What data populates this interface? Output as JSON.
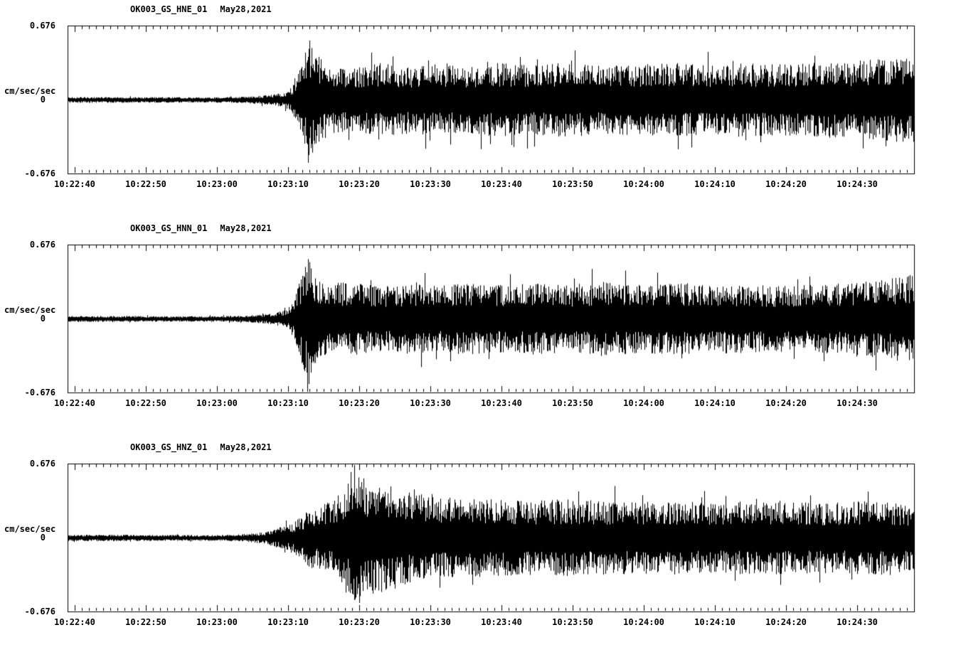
{
  "page": {
    "background": "#ffffff",
    "foreground": "#000000"
  },
  "chart_data": [
    {
      "type": "line",
      "title": "OK003_GS_HNE_01",
      "date": "May28,2021",
      "ylabel": "cm/sec/sec",
      "ylim": [
        -0.676,
        0.676
      ],
      "yticks": [
        "0.676",
        "0",
        "-0.676"
      ],
      "x_tick_labels": [
        "10:22:40",
        "10:22:50",
        "10:23:00",
        "10:23:10",
        "10:23:20",
        "10:23:30",
        "10:23:40",
        "10:23:50",
        "10:24:00",
        "10:24:10",
        "10:24:20",
        "10:24:30"
      ],
      "x_tick_interval_seconds": 10,
      "minor_tick_seconds": 1,
      "first_tick_offset_seconds": 1,
      "time_span_seconds": 119,
      "grid": false,
      "legend": "none",
      "line_color": "#000000",
      "seed": 101,
      "envelope": {
        "t": [
          0,
          20,
          25,
          28,
          30,
          31,
          32,
          33,
          34,
          35,
          37,
          40,
          44,
          48,
          52,
          56,
          60,
          65,
          70,
          75,
          80,
          85,
          90,
          95,
          100,
          105,
          110,
          114,
          119
        ],
        "amp": [
          0.035,
          0.032,
          0.04,
          0.06,
          0.09,
          0.12,
          0.25,
          0.55,
          0.8,
          0.6,
          0.45,
          0.42,
          0.5,
          0.45,
          0.48,
          0.44,
          0.5,
          0.46,
          0.5,
          0.46,
          0.48,
          0.5,
          0.46,
          0.5,
          0.47,
          0.5,
          0.52,
          0.55,
          0.58
        ]
      }
    },
    {
      "type": "line",
      "title": "OK003_GS_HNN_01",
      "date": "May28,2021",
      "ylabel": "cm/sec/sec",
      "ylim": [
        -0.676,
        0.676
      ],
      "yticks": [
        "0.676",
        "0",
        "-0.676"
      ],
      "x_tick_labels": [
        "10:22:40",
        "10:22:50",
        "10:23:00",
        "10:23:10",
        "10:23:20",
        "10:23:30",
        "10:23:40",
        "10:23:50",
        "10:24:00",
        "10:24:10",
        "10:24:20",
        "10:24:30"
      ],
      "x_tick_interval_seconds": 10,
      "minor_tick_seconds": 1,
      "first_tick_offset_seconds": 1,
      "time_span_seconds": 119,
      "grid": false,
      "legend": "none",
      "line_color": "#000000",
      "seed": 202,
      "envelope": {
        "t": [
          0,
          20,
          25,
          28,
          30,
          31,
          32,
          33,
          34,
          35,
          37,
          40,
          44,
          48,
          52,
          56,
          60,
          65,
          70,
          75,
          80,
          85,
          90,
          95,
          100,
          105,
          110,
          114,
          119
        ],
        "amp": [
          0.035,
          0.032,
          0.04,
          0.06,
          0.1,
          0.14,
          0.3,
          0.65,
          0.92,
          0.55,
          0.48,
          0.5,
          0.43,
          0.47,
          0.44,
          0.48,
          0.45,
          0.48,
          0.45,
          0.5,
          0.46,
          0.48,
          0.45,
          0.47,
          0.44,
          0.46,
          0.48,
          0.52,
          0.6
        ]
      }
    },
    {
      "type": "line",
      "title": "OK003_GS_HNZ_01",
      "date": "May28,2021",
      "ylabel": "cm/sec/sec",
      "ylim": [
        -0.676,
        0.676
      ],
      "yticks": [
        "0.676",
        "0",
        "-0.676"
      ],
      "x_tick_labels": [
        "10:22:40",
        "10:22:50",
        "10:23:00",
        "10:23:10",
        "10:23:20",
        "10:23:30",
        "10:23:40",
        "10:23:50",
        "10:24:00",
        "10:24:10",
        "10:24:20",
        "10:24:30"
      ],
      "x_tick_interval_seconds": 10,
      "minor_tick_seconds": 1,
      "first_tick_offset_seconds": 1,
      "time_span_seconds": 119,
      "grid": false,
      "legend": "none",
      "line_color": "#000000",
      "seed": 303,
      "envelope": {
        "t": [
          0,
          20,
          25,
          28,
          30,
          31,
          32,
          33,
          34,
          35,
          37,
          40,
          44,
          48,
          52,
          56,
          60,
          65,
          70,
          75,
          80,
          85,
          90,
          95,
          100,
          105,
          110,
          114,
          119
        ],
        "amp": [
          0.04,
          0.035,
          0.05,
          0.08,
          0.15,
          0.18,
          0.22,
          0.3,
          0.42,
          0.4,
          0.5,
          0.85,
          0.75,
          0.62,
          0.56,
          0.52,
          0.52,
          0.5,
          0.52,
          0.5,
          0.48,
          0.5,
          0.47,
          0.49,
          0.5,
          0.47,
          0.48,
          0.5,
          0.43
        ]
      }
    }
  ]
}
